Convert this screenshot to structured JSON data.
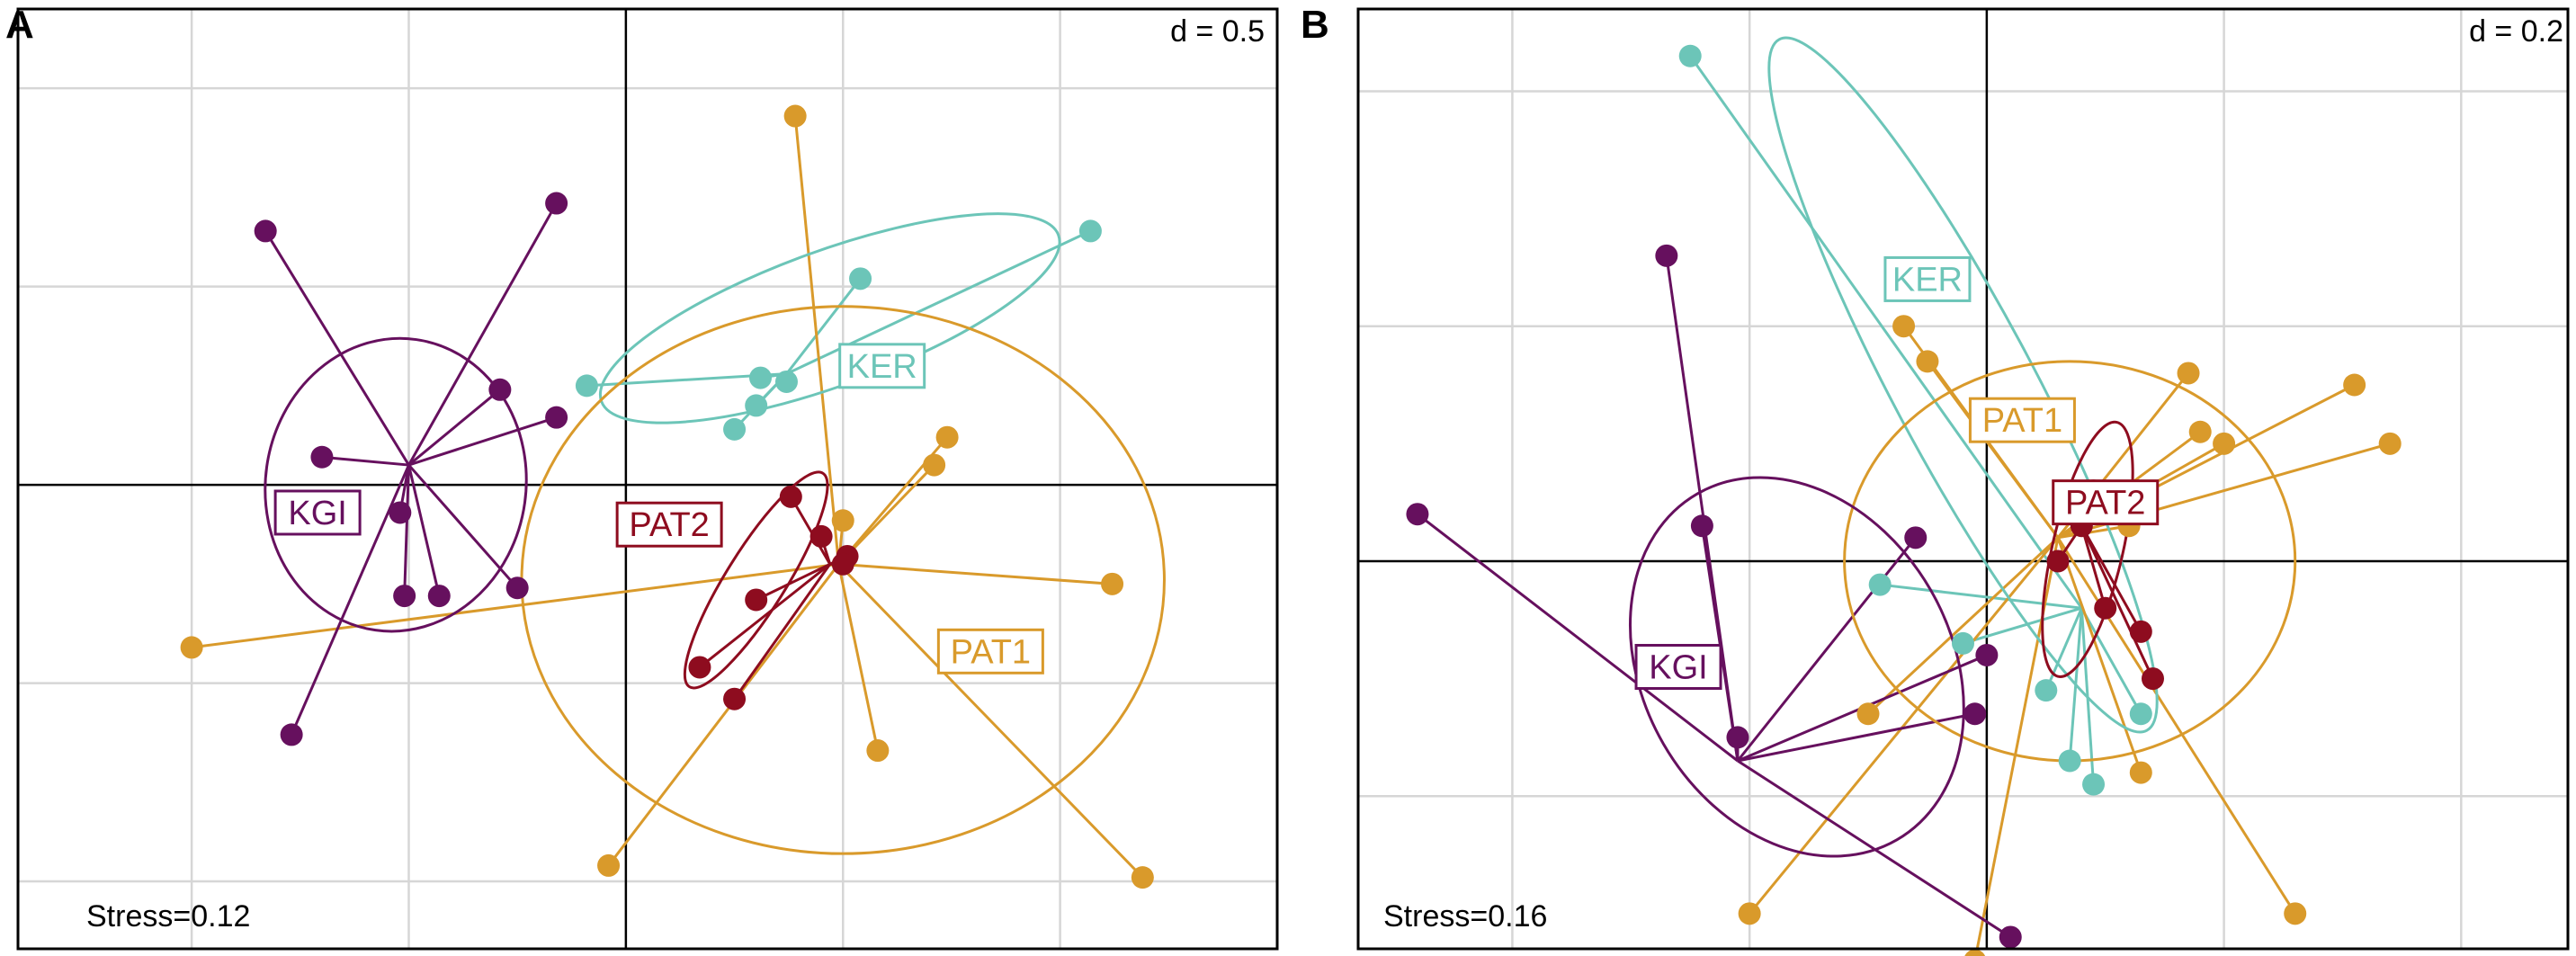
{
  "chart_data": [
    {
      "type": "scatter",
      "panel": "A",
      "scale_label": "d = 0.5",
      "stress_label": "Stress=0.12",
      "grid": true,
      "xlim": [
        -1.4,
        1.5
      ],
      "ylim": [
        -1.17,
        1.2
      ],
      "grid_step": 0.5,
      "axes_zero_lines": true,
      "colors": {
        "KGI": "#66105e",
        "KER": "#6cc5b8",
        "PAT1": "#d99a2b",
        "PAT2": "#8e0c1f"
      },
      "groups": [
        {
          "name": "KGI",
          "label": "KGI",
          "centroid": [
            -0.5,
            0.05
          ],
          "points": [
            [
              -0.83,
              0.64
            ],
            [
              -0.16,
              0.71
            ],
            [
              -0.29,
              0.24
            ],
            [
              -0.16,
              0.17
            ],
            [
              -0.7,
              0.07
            ],
            [
              -0.52,
              -0.07
            ],
            [
              -0.51,
              -0.28
            ],
            [
              -0.43,
              -0.28
            ],
            [
              -0.25,
              -0.26
            ],
            [
              -0.77,
              -0.63
            ]
          ],
          "ellipse": {
            "cx": -0.53,
            "cy": 0.0,
            "rx": 0.3,
            "ry": 0.37,
            "angle": 8
          },
          "label_pos": [
            -0.71,
            -0.07
          ]
        },
        {
          "name": "KER",
          "label": "KER",
          "centroid": [
            0.37,
            0.28
          ],
          "points": [
            [
              1.07,
              0.64
            ],
            [
              0.54,
              0.52
            ],
            [
              0.31,
              0.27
            ],
            [
              0.37,
              0.26
            ],
            [
              0.3,
              0.2
            ],
            [
              0.25,
              0.14
            ],
            [
              -0.09,
              0.25
            ]
          ],
          "ellipse": {
            "cx": 0.47,
            "cy": 0.42,
            "rx": 0.56,
            "ry": 0.17,
            "angle": -20
          },
          "label_pos": [
            0.59,
            0.3
          ]
        },
        {
          "name": "PAT1",
          "label": "PAT1",
          "centroid": [
            0.49,
            -0.2
          ],
          "points": [
            [
              0.39,
              0.93
            ],
            [
              0.74,
              0.12
            ],
            [
              0.71,
              0.05
            ],
            [
              0.5,
              -0.09
            ],
            [
              1.12,
              -0.25
            ],
            [
              1.19,
              -0.99
            ],
            [
              0.58,
              -0.67
            ],
            [
              -0.04,
              -0.96
            ],
            [
              -1.0,
              -0.41
            ]
          ],
          "ellipse": {
            "cx": 0.5,
            "cy": -0.24,
            "rx": 0.74,
            "ry": 0.69,
            "angle": 0
          },
          "label_pos": [
            0.84,
            -0.42
          ]
        },
        {
          "name": "PAT2",
          "label": "PAT2",
          "centroid": [
            0.47,
            -0.2
          ],
          "points": [
            [
              0.38,
              -0.03
            ],
            [
              0.45,
              -0.13
            ],
            [
              0.51,
              -0.18
            ],
            [
              0.5,
              -0.2
            ],
            [
              0.3,
              -0.29
            ],
            [
              0.17,
              -0.46
            ],
            [
              0.25,
              -0.54
            ]
          ],
          "ellipse": {
            "cx": 0.3,
            "cy": -0.24,
            "rx": 0.29,
            "ry": 0.075,
            "angle": -58
          },
          "label_pos": [
            0.1,
            -0.1
          ]
        }
      ]
    },
    {
      "type": "scatter",
      "panel": "B",
      "scale_label": "d = 0.2",
      "stress_label": "Stress=0.16",
      "grid": true,
      "xlim": [
        -0.53,
        0.49
      ],
      "ylim": [
        -0.33,
        0.47
      ],
      "grid_step": 0.2,
      "axes_zero_lines": true,
      "colors": {
        "KGI": "#66105e",
        "KER": "#6cc5b8",
        "PAT1": "#d99a2b",
        "PAT2": "#8e0c1f"
      },
      "groups": [
        {
          "name": "KGI",
          "label": "KGI",
          "centroid": [
            -0.21,
            -0.17
          ],
          "points": [
            [
              -0.27,
              0.26
            ],
            [
              -0.06,
              0.02
            ],
            [
              0.0,
              -0.08
            ],
            [
              -0.01,
              -0.13
            ],
            [
              -0.24,
              0.03
            ],
            [
              -0.21,
              -0.15
            ],
            [
              -0.48,
              0.04
            ],
            [
              0.02,
              -0.32
            ]
          ],
          "ellipse": {
            "cx": -0.16,
            "cy": -0.09,
            "rx": 0.13,
            "ry": 0.17,
            "angle": -30
          },
          "label_pos": [
            -0.26,
            -0.09
          ]
        },
        {
          "name": "KER",
          "label": "KER",
          "centroid": [
            0.08,
            -0.04
          ],
          "points": [
            [
              -0.25,
              0.43
            ],
            [
              -0.09,
              -0.02
            ],
            [
              -0.02,
              -0.07
            ],
            [
              0.05,
              -0.11
            ],
            [
              0.07,
              -0.17
            ],
            [
              0.13,
              -0.13
            ],
            [
              0.09,
              -0.19
            ]
          ],
          "ellipse": {
            "cx": -0.02,
            "cy": 0.15,
            "rx": 0.33,
            "ry": 0.06,
            "angle": 62
          },
          "label_pos": [
            -0.05,
            0.24
          ]
        },
        {
          "name": "PAT1",
          "label": "PAT1",
          "centroid": [
            0.06,
            0.02
          ],
          "points": [
            [
              0.17,
              0.16
            ],
            [
              0.2,
              0.1
            ],
            [
              0.34,
              0.1
            ],
            [
              0.31,
              0.15
            ],
            [
              0.18,
              0.11
            ],
            [
              0.12,
              0.03
            ],
            [
              0.13,
              -0.18
            ],
            [
              0.26,
              -0.3
            ],
            [
              -0.07,
              0.2
            ],
            [
              -0.05,
              0.17
            ],
            [
              -0.1,
              -0.13
            ],
            [
              -0.2,
              -0.3
            ],
            [
              -0.01,
              -0.34
            ]
          ],
          "ellipse": {
            "cx": 0.07,
            "cy": 0.0,
            "rx": 0.19,
            "ry": 0.17,
            "angle": 0
          },
          "label_pos": [
            0.03,
            0.12
          ]
        },
        {
          "name": "PAT2",
          "label": "PAT2",
          "centroid": [
            0.08,
            0.03
          ],
          "points": [
            [
              0.09,
              0.06
            ],
            [
              0.08,
              0.03
            ],
            [
              0.07,
              0.05
            ],
            [
              0.06,
              0.0
            ],
            [
              0.14,
              -0.1
            ],
            [
              0.13,
              -0.06
            ],
            [
              0.1,
              -0.04
            ]
          ],
          "ellipse": {
            "cx": 0.085,
            "cy": 0.01,
            "rx": 0.11,
            "ry": 0.03,
            "angle": -77
          },
          "label_pos": [
            0.1,
            0.05
          ]
        }
      ]
    }
  ]
}
